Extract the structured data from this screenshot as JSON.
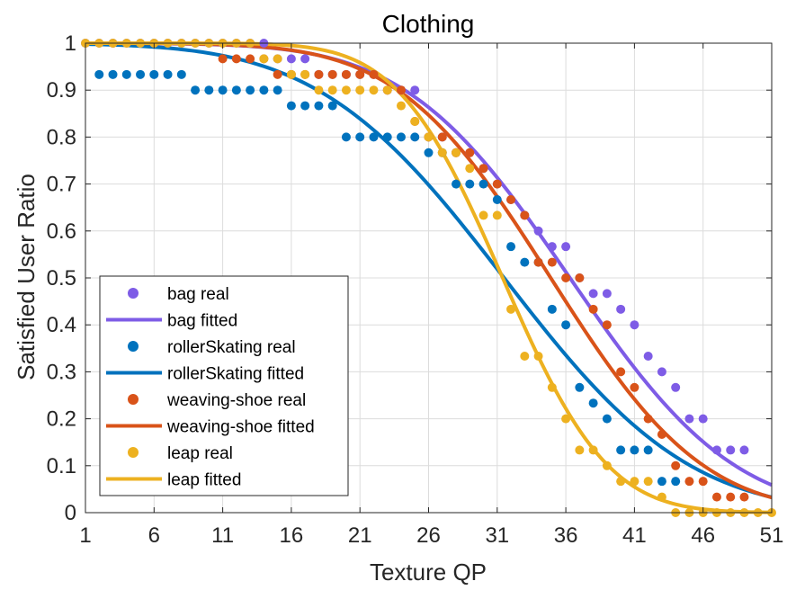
{
  "chart_data": {
    "type": "scatter",
    "title": "Clothing",
    "xlabel": "Texture QP",
    "ylabel": "Satisfied User Ratio",
    "xlim": [
      1,
      51
    ],
    "ylim": [
      0,
      1
    ],
    "x_ticks": [
      1,
      6,
      11,
      16,
      21,
      26,
      31,
      36,
      41,
      46,
      51
    ],
    "x_tick_labels": [
      "1",
      "6",
      "11",
      "16",
      "21",
      "26",
      "31",
      "36",
      "41",
      "46",
      "51"
    ],
    "y_ticks": [
      0,
      0.1,
      0.2,
      0.3,
      0.4,
      0.5,
      0.6,
      0.7,
      0.8,
      0.9,
      1
    ],
    "y_tick_labels": [
      "0",
      "0.1",
      "0.2",
      "0.3",
      "0.4",
      "0.5",
      "0.6",
      "0.7",
      "0.8",
      "0.9",
      "1"
    ],
    "grid": true,
    "legend_position": "bottom-left",
    "series": [
      {
        "name": "bag",
        "real_label": "bag real",
        "fitted_label": "bag fitted",
        "color": "#7E5CE6",
        "real": [
          [
            1,
            1
          ],
          [
            2,
            1
          ],
          [
            3,
            1
          ],
          [
            4,
            1
          ],
          [
            5,
            1
          ],
          [
            6,
            1
          ],
          [
            7,
            1
          ],
          [
            8,
            1
          ],
          [
            9,
            1
          ],
          [
            10,
            1
          ],
          [
            11,
            1
          ],
          [
            12,
            1
          ],
          [
            13,
            1
          ],
          [
            14,
            1
          ],
          [
            15,
            0.9667
          ],
          [
            16,
            0.9667
          ],
          [
            17,
            0.9667
          ],
          [
            18,
            0.9333
          ],
          [
            19,
            0.9333
          ],
          [
            20,
            0.9333
          ],
          [
            21,
            0.9333
          ],
          [
            22,
            0.9333
          ],
          [
            23,
            0.9
          ],
          [
            24,
            0.9
          ],
          [
            25,
            0.9
          ],
          [
            26,
            0.8
          ],
          [
            27,
            0.8
          ],
          [
            28,
            0.7667
          ],
          [
            29,
            0.7667
          ],
          [
            30,
            0.7333
          ],
          [
            31,
            0.7
          ],
          [
            32,
            0.6667
          ],
          [
            33,
            0.6333
          ],
          [
            34,
            0.6
          ],
          [
            35,
            0.5667
          ],
          [
            36,
            0.5667
          ],
          [
            37,
            0.5
          ],
          [
            38,
            0.4667
          ],
          [
            39,
            0.4667
          ],
          [
            40,
            0.4333
          ],
          [
            41,
            0.4
          ],
          [
            42,
            0.3333
          ],
          [
            43,
            0.3
          ],
          [
            44,
            0.2667
          ],
          [
            45,
            0.2
          ],
          [
            46,
            0.2
          ],
          [
            47,
            0.1333
          ],
          [
            48,
            0.1333
          ],
          [
            49,
            0.1333
          ]
        ],
        "fitted": {
          "mu": 36.3,
          "sigma": 9.4
        }
      },
      {
        "name": "rollerSkating",
        "real_label": "rollerSkating real",
        "fitted_label": "rollerSkating fitted",
        "color": "#0072BD",
        "real": [
          [
            2,
            0.9333
          ],
          [
            3,
            0.9333
          ],
          [
            4,
            0.9333
          ],
          [
            5,
            0.9333
          ],
          [
            6,
            0.9333
          ],
          [
            7,
            0.9333
          ],
          [
            8,
            0.9333
          ],
          [
            9,
            0.9
          ],
          [
            10,
            0.9
          ],
          [
            11,
            0.9
          ],
          [
            12,
            0.9
          ],
          [
            13,
            0.9
          ],
          [
            14,
            0.9
          ],
          [
            15,
            0.9
          ],
          [
            16,
            0.8667
          ],
          [
            17,
            0.8667
          ],
          [
            18,
            0.8667
          ],
          [
            19,
            0.8667
          ],
          [
            20,
            0.8
          ],
          [
            21,
            0.8
          ],
          [
            22,
            0.8
          ],
          [
            23,
            0.8
          ],
          [
            24,
            0.8
          ],
          [
            25,
            0.8
          ],
          [
            26,
            0.7667
          ],
          [
            27,
            0.7667
          ],
          [
            28,
            0.7
          ],
          [
            29,
            0.7
          ],
          [
            30,
            0.7
          ],
          [
            31,
            0.6667
          ],
          [
            32,
            0.5667
          ],
          [
            33,
            0.5333
          ],
          [
            34,
            0.5333
          ],
          [
            35,
            0.4333
          ],
          [
            36,
            0.4
          ],
          [
            37,
            0.2667
          ],
          [
            38,
            0.2333
          ],
          [
            39,
            0.2
          ],
          [
            40,
            0.1333
          ],
          [
            41,
            0.1333
          ],
          [
            42,
            0.1333
          ],
          [
            43,
            0.0667
          ],
          [
            44,
            0.0667
          ]
        ],
        "fitted": {
          "mu": 31.5,
          "sigma": 10.6
        }
      },
      {
        "name": "weaving-shoe",
        "real_label": "weaving-shoe real",
        "fitted_label": "weaving-shoe fitted",
        "color": "#D95319",
        "real": [
          [
            11,
            0.9667
          ],
          [
            12,
            0.9667
          ],
          [
            13,
            0.9667
          ],
          [
            14,
            0.9667
          ],
          [
            15,
            0.9333
          ],
          [
            16,
            0.9333
          ],
          [
            17,
            0.9333
          ],
          [
            18,
            0.9333
          ],
          [
            19,
            0.9333
          ],
          [
            20,
            0.9333
          ],
          [
            21,
            0.9333
          ],
          [
            22,
            0.9333
          ],
          [
            23,
            0.9
          ],
          [
            24,
            0.9
          ],
          [
            25,
            0.8333
          ],
          [
            26,
            0.8
          ],
          [
            27,
            0.8
          ],
          [
            28,
            0.7667
          ],
          [
            29,
            0.7667
          ],
          [
            30,
            0.7333
          ],
          [
            31,
            0.7
          ],
          [
            32,
            0.6667
          ],
          [
            33,
            0.6333
          ],
          [
            34,
            0.5333
          ],
          [
            35,
            0.5333
          ],
          [
            36,
            0.5
          ],
          [
            37,
            0.5
          ],
          [
            38,
            0.4333
          ],
          [
            39,
            0.4
          ],
          [
            40,
            0.3
          ],
          [
            41,
            0.2667
          ],
          [
            42,
            0.2
          ],
          [
            43,
            0.1667
          ],
          [
            44,
            0.1
          ],
          [
            45,
            0.0667
          ],
          [
            46,
            0.0667
          ],
          [
            47,
            0.0333
          ],
          [
            48,
            0.0333
          ],
          [
            49,
            0.0333
          ]
        ],
        "fitted": {
          "mu": 34.9,
          "sigma": 8.7
        }
      },
      {
        "name": "leap",
        "real_label": "leap real",
        "fitted_label": "leap fitted",
        "color": "#EDB120",
        "real": [
          [
            1,
            1
          ],
          [
            2,
            1
          ],
          [
            3,
            1
          ],
          [
            4,
            1
          ],
          [
            5,
            1
          ],
          [
            6,
            1
          ],
          [
            7,
            1
          ],
          [
            8,
            1
          ],
          [
            9,
            1
          ],
          [
            10,
            1
          ],
          [
            11,
            1
          ],
          [
            12,
            1
          ],
          [
            13,
            1
          ],
          [
            14,
            0.9667
          ],
          [
            15,
            0.9667
          ],
          [
            16,
            0.9333
          ],
          [
            17,
            0.9333
          ],
          [
            18,
            0.9
          ],
          [
            19,
            0.9
          ],
          [
            20,
            0.9
          ],
          [
            21,
            0.9
          ],
          [
            22,
            0.9
          ],
          [
            23,
            0.9
          ],
          [
            24,
            0.8667
          ],
          [
            25,
            0.8333
          ],
          [
            26,
            0.8
          ],
          [
            27,
            0.7667
          ],
          [
            28,
            0.7667
          ],
          [
            29,
            0.7333
          ],
          [
            30,
            0.6333
          ],
          [
            31,
            0.6333
          ],
          [
            32,
            0.4333
          ],
          [
            33,
            0.3333
          ],
          [
            34,
            0.3333
          ],
          [
            35,
            0.2667
          ],
          [
            36,
            0.2
          ],
          [
            37,
            0.1333
          ],
          [
            38,
            0.1333
          ],
          [
            39,
            0.1
          ],
          [
            40,
            0.0667
          ],
          [
            41,
            0.0667
          ],
          [
            42,
            0.0667
          ],
          [
            43,
            0.0333
          ],
          [
            44,
            0
          ],
          [
            45,
            0
          ],
          [
            46,
            0
          ],
          [
            47,
            0
          ],
          [
            48,
            0
          ],
          [
            49,
            0
          ],
          [
            50,
            0
          ],
          [
            51,
            0
          ]
        ],
        "fitted": {
          "mu": 31.4,
          "sigma": 6.0
        }
      }
    ]
  }
}
